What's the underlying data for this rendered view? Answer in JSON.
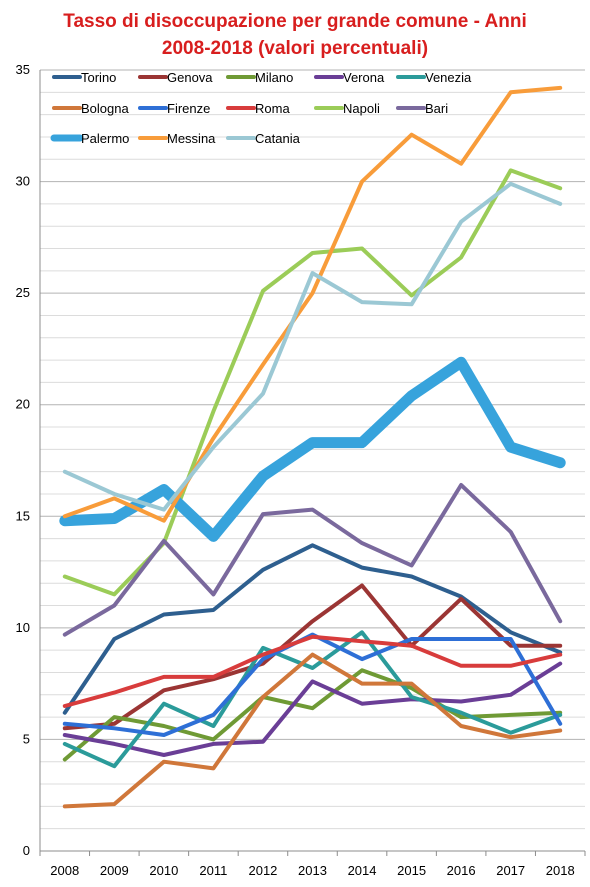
{
  "chart_data": {
    "type": "line",
    "title": [
      "Tasso di disoccupazione per grande comune - Anni",
      "2008-2018 (valori percentuali)"
    ],
    "xlabel": "",
    "ylabel": "",
    "categories": [
      "2008",
      "2009",
      "2010",
      "2011",
      "2012",
      "2013",
      "2014",
      "2015",
      "2016",
      "2017",
      "2018"
    ],
    "ylim": [
      0,
      35
    ],
    "yticks": [
      0,
      5,
      10,
      15,
      20,
      25,
      30,
      35
    ],
    "grid": true,
    "legend_position": "top",
    "series": [
      {
        "name": "Torino",
        "color": "#2e5f8f",
        "width": 4,
        "values": [
          6.2,
          9.5,
          10.6,
          10.8,
          12.6,
          13.7,
          12.7,
          12.3,
          11.4,
          9.8,
          8.9
        ]
      },
      {
        "name": "Genova",
        "color": "#9b3534",
        "width": 4,
        "values": [
          5.5,
          5.7,
          7.2,
          7.7,
          8.4,
          10.3,
          11.9,
          9.2,
          11.3,
          9.2,
          9.2
        ]
      },
      {
        "name": "Milano",
        "color": "#6f9a35",
        "width": 4,
        "values": [
          4.1,
          6.0,
          5.6,
          5.0,
          6.9,
          6.4,
          8.1,
          7.3,
          6.0,
          6.1,
          6.2
        ]
      },
      {
        "name": "Verona",
        "color": "#6a3e96",
        "width": 4,
        "values": [
          5.2,
          4.8,
          4.3,
          4.8,
          4.9,
          7.6,
          6.6,
          6.8,
          6.7,
          7.0,
          8.4
        ]
      },
      {
        "name": "Venezia",
        "color": "#2b9b9a",
        "width": 4,
        "values": [
          4.8,
          3.8,
          6.6,
          5.6,
          9.1,
          8.2,
          9.8,
          6.9,
          6.2,
          5.3,
          6.1
        ]
      },
      {
        "name": "Bologna",
        "color": "#d0773a",
        "width": 4,
        "values": [
          2.0,
          2.1,
          4.0,
          3.7,
          6.9,
          8.8,
          7.5,
          7.5,
          5.6,
          5.1,
          5.4
        ]
      },
      {
        "name": "Firenze",
        "color": "#2e6fd6",
        "width": 4,
        "values": [
          5.7,
          5.5,
          5.2,
          6.1,
          8.6,
          9.7,
          8.6,
          9.5,
          9.5,
          9.5,
          5.7
        ]
      },
      {
        "name": "Roma",
        "color": "#d83c3c",
        "width": 4,
        "values": [
          6.5,
          7.1,
          7.8,
          7.8,
          8.8,
          9.6,
          9.4,
          9.2,
          8.3,
          8.3,
          8.8
        ]
      },
      {
        "name": "Napoli",
        "color": "#9bcc58",
        "width": 4,
        "values": [
          12.3,
          11.5,
          13.8,
          19.7,
          25.1,
          26.8,
          27.0,
          24.9,
          26.6,
          30.5,
          29.7
        ]
      },
      {
        "name": "Bari",
        "color": "#7a699d",
        "width": 4,
        "values": [
          9.7,
          11.0,
          13.9,
          11.5,
          15.1,
          15.3,
          13.8,
          12.8,
          16.4,
          14.3,
          10.3
        ]
      },
      {
        "name": "Palermo",
        "color": "#37a3dc",
        "width": 11,
        "values": [
          14.8,
          14.9,
          16.2,
          14.1,
          16.8,
          18.3,
          18.3,
          20.4,
          21.9,
          18.1,
          17.4
        ]
      },
      {
        "name": "Messina",
        "color": "#f89c3a",
        "width": 4,
        "values": [
          15.0,
          15.8,
          14.8,
          18.5,
          21.8,
          25.0,
          30.0,
          32.1,
          30.8,
          34.0,
          34.2
        ]
      },
      {
        "name": "Catania",
        "color": "#9bc8d4",
        "width": 4,
        "values": [
          17.0,
          16.0,
          15.3,
          18.1,
          20.5,
          25.9,
          24.6,
          24.5,
          28.2,
          29.9,
          29.0
        ]
      }
    ]
  }
}
